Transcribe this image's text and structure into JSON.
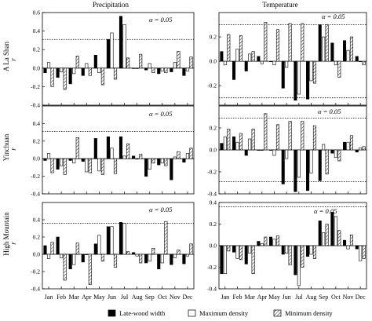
{
  "column_titles": [
    "Precipitation",
    "Temperature"
  ],
  "row_titles": [
    "A La Shan",
    "Yinchuan",
    "High Mountain"
  ],
  "ylabel": "r",
  "months": [
    "Jan",
    "Feb",
    "Mar",
    "Apr",
    "May",
    "Jun",
    "Jul",
    "Aug",
    "Sep",
    "Oct",
    "Nov",
    "Dec"
  ],
  "significance_label": "α = 0.05",
  "legend": [
    {
      "label": "Late-wood width",
      "pattern": "solid"
    },
    {
      "label": "Maximum density",
      "pattern": "open"
    },
    {
      "label": "Minimum density",
      "pattern": "hatched"
    }
  ],
  "colors": {
    "bar_fill": "#000000",
    "open_fill": "#ffffff",
    "axis": "#000000"
  },
  "chart_data": [
    {
      "type": "bar",
      "row": "A La Shan",
      "column": "Precipitation",
      "ylim": [
        -0.4,
        0.6
      ],
      "yticks": [
        "-0.4",
        "-0.2",
        "0.0",
        "0.2",
        "0.4",
        "0.6"
      ],
      "significance_lines": [
        0.31
      ],
      "series": [
        {
          "name": "Late-wood width",
          "values": [
            -0.05,
            -0.1,
            -0.17,
            -0.08,
            0.14,
            0.31,
            0.56,
            0.0,
            -0.02,
            -0.06,
            -0.04,
            -0.08
          ]
        },
        {
          "name": "Maximum density",
          "values": [
            0.06,
            -0.04,
            -0.06,
            0.05,
            -0.05,
            0.38,
            0.47,
            0.0,
            0.05,
            -0.03,
            0.06,
            -0.03
          ]
        },
        {
          "name": "Minimum density",
          "values": [
            -0.2,
            -0.23,
            0.13,
            -0.08,
            -0.18,
            -0.12,
            0.11,
            0.15,
            -0.05,
            -0.05,
            0.18,
            0.12
          ]
        }
      ]
    },
    {
      "type": "bar",
      "row": "A La Shan",
      "column": "Temperature",
      "ylim": [
        -0.36,
        0.4
      ],
      "yticks": [
        "-0.2",
        "0.0",
        "0.2"
      ],
      "significance_lines": [
        0.3,
        -0.3
      ],
      "series": [
        {
          "name": "Late-wood width",
          "values": [
            0.08,
            -0.15,
            -0.08,
            0.04,
            0.0,
            -0.22,
            -0.32,
            -0.31,
            0.3,
            0.15,
            0.17,
            0.04
          ]
        },
        {
          "name": "Maximum density",
          "values": [
            -0.03,
            0.1,
            0.06,
            -0.02,
            -0.03,
            -0.05,
            -0.27,
            -0.16,
            0.2,
            -0.03,
            0.09,
            0.0
          ]
        },
        {
          "name": "Minimum density",
          "values": [
            0.22,
            0.21,
            0.08,
            0.32,
            0.26,
            0.31,
            0.31,
            -0.18,
            0.3,
            -0.13,
            0.2,
            -0.03
          ]
        }
      ]
    },
    {
      "type": "bar",
      "row": "Yinchuan",
      "column": "Precipitation",
      "ylim": [
        -0.4,
        0.6
      ],
      "yticks": [
        "-0.4",
        "-0.2",
        "0.0",
        "0.2",
        "0.4"
      ],
      "significance_lines": [
        0.31
      ],
      "series": [
        {
          "name": "Late-wood width",
          "values": [
            -0.02,
            -0.12,
            -0.02,
            -0.03,
            0.23,
            0.25,
            0.25,
            0.03,
            -0.2,
            -0.07,
            -0.24,
            -0.04
          ]
        },
        {
          "name": "Maximum density",
          "values": [
            0.06,
            -0.08,
            -0.05,
            -0.15,
            -0.14,
            0.12,
            0.03,
            0.0,
            -0.12,
            -0.05,
            0.02,
            0.06
          ]
        },
        {
          "name": "Minimum density",
          "values": [
            -0.16,
            -0.18,
            0.24,
            -0.16,
            -0.18,
            -0.17,
            0.17,
            0.05,
            -0.05,
            -0.08,
            0.08,
            0.12
          ]
        }
      ]
    },
    {
      "type": "bar",
      "row": "Yinchuan",
      "column": "Temperature",
      "ylim": [
        -0.4,
        0.4
      ],
      "yticks": [
        "-0.4",
        "-0.2",
        "0.0",
        "0.2"
      ],
      "significance_lines": [
        0.29,
        -0.29
      ],
      "series": [
        {
          "name": "Late-wood width",
          "values": [
            0.06,
            0.12,
            -0.05,
            0.0,
            0.0,
            -0.31,
            -0.38,
            -0.37,
            -0.28,
            -0.03,
            0.07,
            -0.02
          ]
        },
        {
          "name": "Maximum density",
          "values": [
            0.12,
            0.07,
            0.1,
            0.0,
            -0.05,
            -0.08,
            -0.25,
            -0.21,
            0.05,
            -0.07,
            0.07,
            0.02
          ]
        },
        {
          "name": "Minimum density",
          "values": [
            0.19,
            0.15,
            0.19,
            0.33,
            0.23,
            0.26,
            0.26,
            0.22,
            -0.22,
            -0.1,
            0.13,
            0.03
          ]
        }
      ]
    },
    {
      "type": "bar",
      "row": "High Mountain",
      "column": "Precipitation",
      "ylim": [
        -0.4,
        0.6
      ],
      "yticks": [
        "-0.4",
        "-0.2",
        "0.0",
        "0.2",
        "0.4"
      ],
      "significance_lines": [
        0.36
      ],
      "series": [
        {
          "name": "Late-wood width",
          "values": [
            0.1,
            0.2,
            -0.17,
            -0.09,
            0.12,
            0.32,
            0.37,
            0.02,
            -0.1,
            -0.17,
            -0.12,
            -0.11
          ]
        },
        {
          "name": "Maximum density",
          "values": [
            -0.05,
            -0.04,
            -0.12,
            0.0,
            0.22,
            0.32,
            0.36,
            -0.02,
            -0.08,
            -0.1,
            -0.04,
            -0.02
          ]
        },
        {
          "name": "Minimum density",
          "values": [
            0.14,
            -0.3,
            0.13,
            -0.35,
            -0.08,
            -0.15,
            0.03,
            -0.1,
            0.07,
            0.38,
            0.05,
            0.12
          ]
        }
      ]
    },
    {
      "type": "bar",
      "row": "High Mountain",
      "column": "Temperature",
      "ylim": [
        -0.4,
        0.4
      ],
      "yticks": [
        "-0.4",
        "-0.2",
        "0.0",
        "0.2",
        "0.4"
      ],
      "significance_lines": [
        0.36
      ],
      "series": [
        {
          "name": "Late-wood width",
          "values": [
            -0.26,
            -0.06,
            -0.17,
            0.04,
            0.08,
            -0.08,
            -0.27,
            -0.1,
            0.23,
            0.31,
            0.05,
            -0.03
          ]
        },
        {
          "name": "Maximum density",
          "values": [
            -0.26,
            -0.12,
            -0.07,
            0.02,
            0.06,
            -0.07,
            -0.37,
            -0.08,
            0.12,
            0.27,
            -0.03,
            -0.14
          ]
        },
        {
          "name": "Minimum density",
          "values": [
            -0.05,
            -0.13,
            -0.26,
            0.08,
            0.09,
            -0.18,
            -0.2,
            -0.12,
            0.2,
            0.14,
            0.1,
            -0.12
          ]
        }
      ]
    }
  ]
}
